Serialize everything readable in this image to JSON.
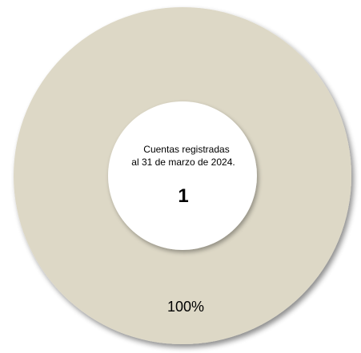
{
  "chart_data": {
    "type": "pie",
    "categories": [
      "Cuentas registradas"
    ],
    "values": [
      1
    ],
    "percent_labels": [
      "100%"
    ],
    "center_text": {
      "line1": "Cuentas registradas",
      "line2": "al 31 de marzo de 2024.",
      "total": "1"
    },
    "colors": {
      "slice": "#DDD8C6",
      "hole": "#FFFFFF",
      "text": "#000000",
      "shadow": "#999999"
    }
  }
}
